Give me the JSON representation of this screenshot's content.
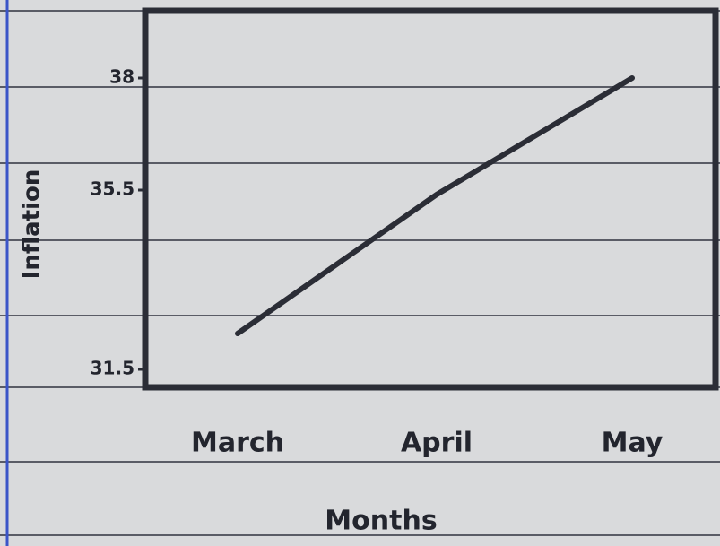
{
  "chart_data": {
    "type": "line",
    "x_label": "Months",
    "y_label": "Inflation",
    "categories": [
      "March",
      "April",
      "May"
    ],
    "values": [
      32.3,
      35.4,
      38
    ],
    "color": "#2b2d36",
    "ylim": [
      31.1,
      39.5
    ],
    "yticks": [
      31.5,
      35.5,
      38
    ]
  }
}
